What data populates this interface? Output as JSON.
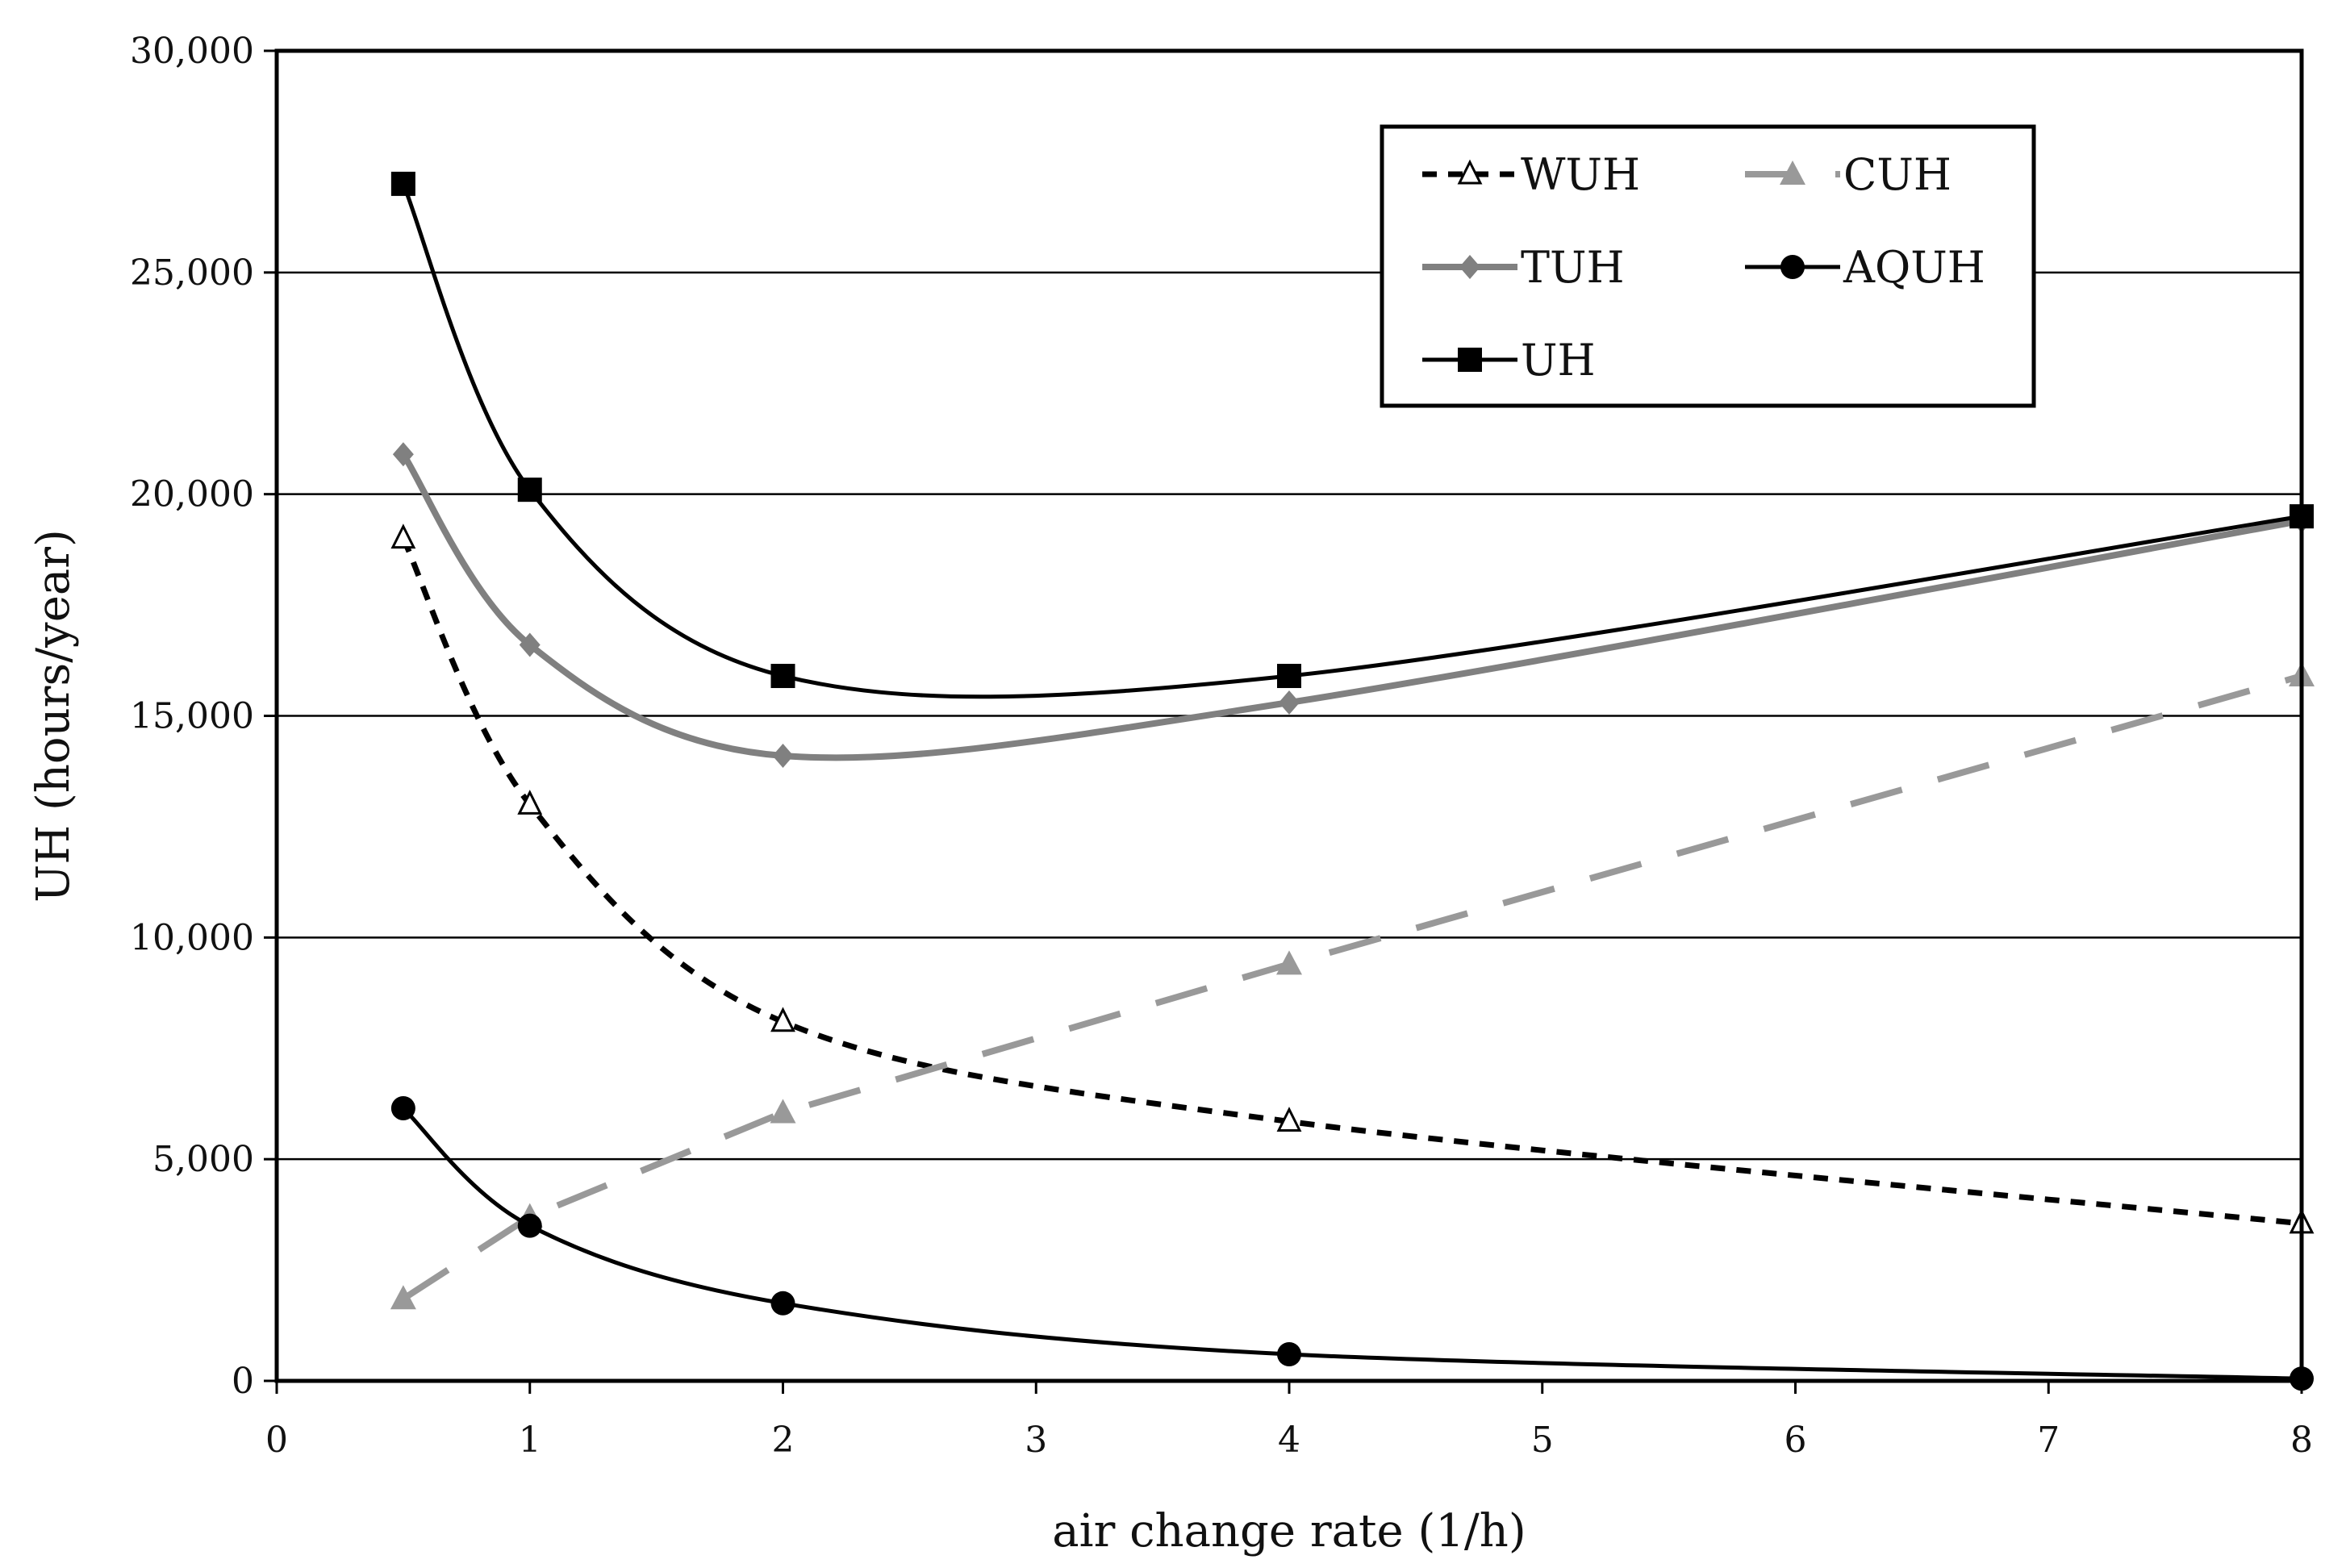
{
  "chart_data": {
    "type": "line",
    "title": "",
    "xlabel": "air change rate (1/h)",
    "ylabel": "UH (hours/year)",
    "xlim": [
      0,
      8
    ],
    "ylim": [
      0,
      30000
    ],
    "xticks": [
      0,
      1,
      2,
      3,
      4,
      5,
      6,
      7,
      8
    ],
    "yticks": [
      0,
      5000,
      10000,
      15000,
      20000,
      25000,
      30000
    ],
    "xtick_labels": [
      "0",
      "1",
      "2",
      "3",
      "4",
      "5",
      "6",
      "7",
      "8"
    ],
    "ytick_labels": [
      "0",
      "5,000",
      "10,000",
      "15,000",
      "20,000",
      "25,000",
      "30,000"
    ],
    "grid": "horizontal",
    "legend_position": "top-right",
    "x": [
      0.5,
      1,
      2,
      4,
      8
    ],
    "series": [
      {
        "name": "WUH",
        "values": [
          19000,
          13000,
          8100,
          5850,
          3550
        ],
        "color": "#000000",
        "dash": "short",
        "marker": "triangle-open",
        "smooth": true
      },
      {
        "name": "CUH",
        "values": [
          1850,
          3700,
          6050,
          9400,
          15900
        ],
        "color": "#999999",
        "dash": "long",
        "marker": "triangle",
        "smooth": false
      },
      {
        "name": "TUH",
        "values": [
          20900,
          16600,
          14100,
          15300,
          19400
        ],
        "color": "#808080",
        "dash": "solid",
        "marker": "diamond",
        "smooth": true
      },
      {
        "name": "AQUH",
        "values": [
          6150,
          3500,
          1750,
          600,
          50
        ],
        "color": "#000000",
        "dash": "solid",
        "marker": "circle",
        "smooth": true
      },
      {
        "name": "UH",
        "values": [
          27000,
          20100,
          15900,
          15900,
          19500
        ],
        "color": "#000000",
        "dash": "solid",
        "marker": "square",
        "smooth": true
      }
    ]
  }
}
